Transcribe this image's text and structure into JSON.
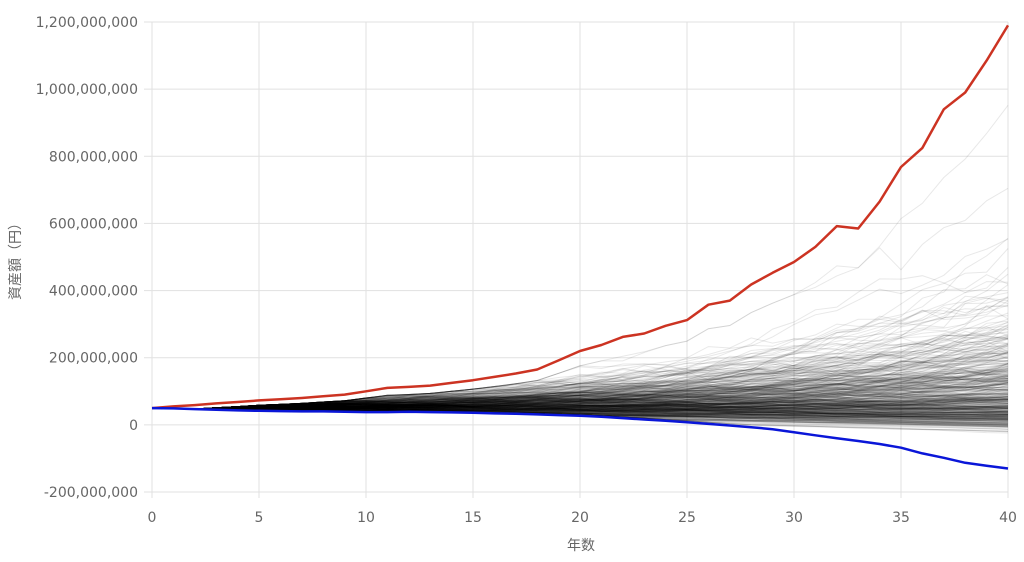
{
  "chart_data": {
    "type": "line",
    "title": "",
    "xlabel": "年数",
    "ylabel": "資産額（円）",
    "xlim": [
      0,
      40
    ],
    "ylim": [
      -200000000,
      1200000000
    ],
    "x_ticks": [
      0,
      5,
      10,
      15,
      20,
      25,
      30,
      35,
      40
    ],
    "x_tick_labels": [
      "0",
      "5",
      "10",
      "15",
      "20",
      "25",
      "30",
      "35",
      "40"
    ],
    "y_ticks": [
      -200000000,
      0,
      200000000,
      400000000,
      600000000,
      800000000,
      1000000000,
      1200000000
    ],
    "y_tick_labels": [
      "-200,000,000",
      "0",
      "200,000,000",
      "400,000,000",
      "600,000,000",
      "800,000,000",
      "1,000,000,000",
      "1,200,000,000"
    ],
    "grid": true,
    "legend": "none",
    "initial_value": 50000000,
    "simulation_paths": 500,
    "simulation_color": "#000000",
    "x": [
      0,
      1,
      2,
      3,
      4,
      5,
      6,
      7,
      8,
      9,
      10,
      11,
      12,
      13,
      14,
      15,
      16,
      17,
      18,
      19,
      20,
      21,
      22,
      23,
      24,
      25,
      26,
      27,
      28,
      29,
      30,
      31,
      32,
      33,
      34,
      35,
      36,
      37,
      38,
      39,
      40
    ],
    "series": [
      {
        "color": "#cc3322",
        "values": [
          50000000,
          55000000,
          59000000,
          64000000,
          68000000,
          73000000,
          76000000,
          80000000,
          85000000,
          90000000,
          100000000,
          110000000,
          113000000,
          117000000,
          125000000,
          133000000,
          143000000,
          153000000,
          165000000,
          192000000,
          220000000,
          238000000,
          262000000,
          272000000,
          295000000,
          312000000,
          358000000,
          370000000,
          418000000,
          453000000,
          485000000,
          530000000,
          592000000,
          585000000,
          665000000,
          768000000,
          825000000,
          940000000,
          990000000,
          1085000000,
          1190000000
        ]
      },
      {
        "color": "#0a16d8",
        "values": [
          50000000,
          49000000,
          47000000,
          45000000,
          43000000,
          42000000,
          41000000,
          40000000,
          40000000,
          39000000,
          38000000,
          38000000,
          39000000,
          38000000,
          37000000,
          36000000,
          34000000,
          33000000,
          31000000,
          29000000,
          27000000,
          24000000,
          20000000,
          16000000,
          12000000,
          8000000,
          3000000,
          -2000000,
          -7000000,
          -13000000,
          -22000000,
          -31000000,
          -40000000,
          -48000000,
          -57000000,
          -68000000,
          -85000000,
          -98000000,
          -113000000,
          -122000000,
          -130000000
        ]
      }
    ]
  }
}
